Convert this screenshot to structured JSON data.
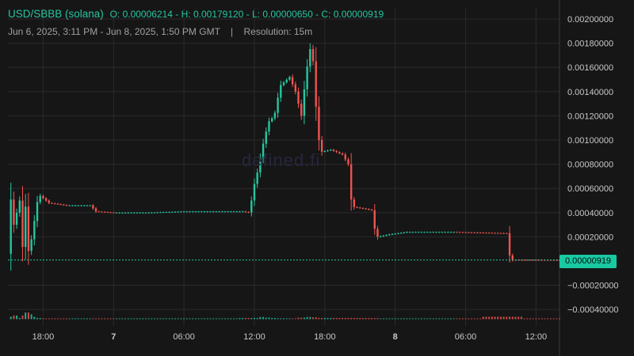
{
  "header": {
    "pair": "USD/SBBB (solana)",
    "ohlc": "O: 0.00006214 - H: 0.00179120 - L: 0.00000650 - C: 0.00000919",
    "range": "Jun 6, 2025, 3:11 PM - Jun 8, 2025, 1:50 PM GMT",
    "separator": "|",
    "resolution": "Resolution: 15m"
  },
  "watermark": "defined.fi",
  "last_price_label": "0.00000919",
  "colors": {
    "up": "#26c6a0",
    "down": "#ef5350",
    "grid": "#2a2a2a",
    "axis_text": "#c8c8c8",
    "background": "#161616"
  },
  "chart_data": {
    "type": "candlestick",
    "resolution": "15m",
    "ylim": [
      -0.0005,
      0.0021
    ],
    "y_ticks": [
      "0.00200000",
      "0.00180000",
      "0.00160000",
      "0.00140000",
      "0.00120000",
      "0.00100000",
      "0.00080000",
      "0.00060000",
      "0.00040000",
      "0.00020000",
      "−0.00020000",
      "−0.00040000"
    ],
    "y_tick_values": [
      0.002,
      0.0018,
      0.0016,
      0.0014,
      0.0012,
      0.001,
      0.0008,
      0.0006,
      0.0004,
      0.0002,
      -0.0002,
      -0.0004
    ],
    "x_ticks": [
      {
        "label": "18:00",
        "t": 3.0
      },
      {
        "label": "7",
        "t": 9.0
      },
      {
        "label": "06:00",
        "t": 15.0
      },
      {
        "label": "12:00",
        "t": 21.0
      },
      {
        "label": "18:00",
        "t": 27.0
      },
      {
        "label": "8",
        "t": 33.0
      },
      {
        "label": "06:00",
        "t": 39.0
      },
      {
        "label": "12:00",
        "t": 45.0
      }
    ],
    "last_price": 9.19e-06,
    "price_series": [
      [
        0.0,
        6e-05
      ],
      [
        0.2,
        0.00055
      ],
      [
        0.5,
        0.0003
      ],
      [
        1.0,
        0.0005
      ],
      [
        1.2,
        5e-05
      ],
      [
        1.5,
        0.00045
      ],
      [
        1.8,
        1e-05
      ],
      [
        2.0,
        0.00018
      ],
      [
        2.2,
        0.0003
      ],
      [
        2.6,
        0.00055
      ],
      [
        3.5,
        0.00048
      ],
      [
        5.0,
        0.00046
      ],
      [
        7.0,
        0.00046
      ],
      [
        7.5,
        0.00041
      ],
      [
        9.0,
        0.0004
      ],
      [
        12.0,
        0.0004
      ],
      [
        15.0,
        0.00041
      ],
      [
        18.0,
        0.00041
      ],
      [
        20.0,
        0.00041
      ],
      [
        20.6,
        0.0004
      ],
      [
        20.9,
        0.0006
      ],
      [
        21.3,
        0.00075
      ],
      [
        21.7,
        0.00095
      ],
      [
        22.2,
        0.00115
      ],
      [
        22.7,
        0.0012
      ],
      [
        23.2,
        0.00145
      ],
      [
        24.0,
        0.00152
      ],
      [
        24.5,
        0.0014
      ],
      [
        25.0,
        0.0012
      ],
      [
        25.4,
        0.00155
      ],
      [
        25.8,
        0.00178
      ],
      [
        26.0,
        0.00165
      ],
      [
        26.3,
        0.0012
      ],
      [
        26.6,
        0.0009
      ],
      [
        27.5,
        0.00092
      ],
      [
        28.5,
        0.00088
      ],
      [
        29.0,
        0.0008
      ],
      [
        29.3,
        0.00045
      ],
      [
        30.5,
        0.00043
      ],
      [
        31.0,
        0.00042
      ],
      [
        31.2,
        0.00028
      ],
      [
        31.5,
        0.0002
      ],
      [
        32.5,
        0.00022
      ],
      [
        34.0,
        0.00024
      ],
      [
        38.0,
        0.00024
      ],
      [
        42.5,
        0.00023
      ],
      [
        42.8,
        1e-05
      ],
      [
        47.0,
        9.19e-06
      ]
    ],
    "volume_series": [
      [
        0.0,
        0.00014
      ],
      [
        0.3,
        4e-05
      ],
      [
        0.6,
        6e-05
      ],
      [
        1.0,
        2e-05
      ],
      [
        1.3,
        6e-05
      ],
      [
        1.6,
        0.00011
      ],
      [
        1.9,
        8e-05
      ],
      [
        2.2,
        4e-05
      ],
      [
        2.5,
        2e-05
      ],
      [
        3.0,
        1e-05
      ],
      [
        5.0,
        5e-06
      ],
      [
        7.5,
        1e-05
      ],
      [
        12.0,
        6e-06
      ],
      [
        18.0,
        6e-06
      ],
      [
        21.0,
        2e-05
      ],
      [
        21.5,
        3.5e-05
      ],
      [
        22.0,
        2.5e-05
      ],
      [
        22.5,
        2e-05
      ],
      [
        23.0,
        1.5e-05
      ],
      [
        24.0,
        1e-05
      ],
      [
        25.0,
        2.5e-05
      ],
      [
        25.5,
        3.5e-05
      ],
      [
        26.0,
        3e-05
      ],
      [
        26.5,
        2e-05
      ],
      [
        29.0,
        2e-05
      ],
      [
        31.0,
        1.8e-05
      ],
      [
        32.0,
        6e-06
      ],
      [
        34.0,
        1e-05
      ],
      [
        38.0,
        6e-06
      ],
      [
        42.8,
        4e-05
      ],
      [
        45.0,
        5e-06
      ],
      [
        47.0,
        4e-06
      ]
    ]
  }
}
